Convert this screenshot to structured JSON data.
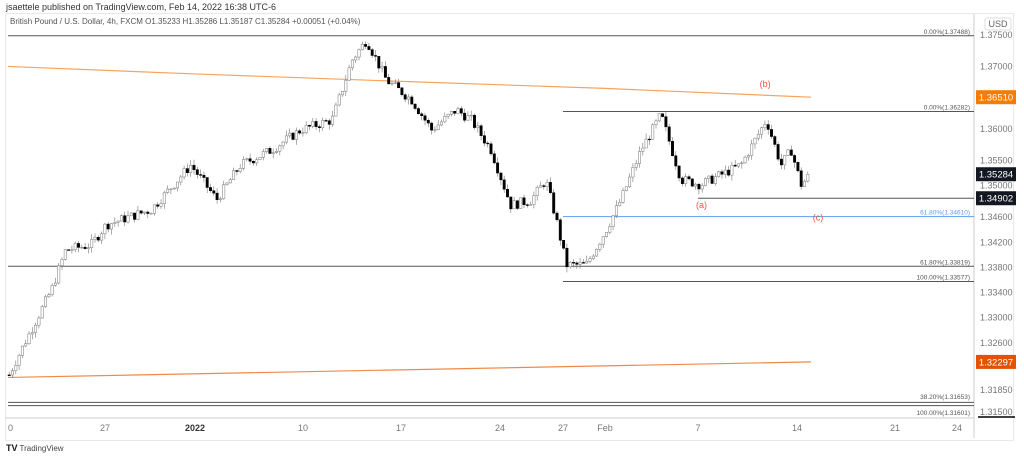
{
  "header": {
    "published": "jsaettele published on TradingView.com, Feb 14, 2022 16:38 UTC-6",
    "symbol_line": "British Pound / U.S. Dollar, 4h, FXCM  O1.35233  H1.35286  L1.35187  C1.35284  +0.00051 (+0.04%)"
  },
  "footer": {
    "brand": "TradingView",
    "logo": "tv-logo"
  },
  "chart_data": {
    "type": "candlestick",
    "currency": "USD",
    "ylim": [
      1.315,
      1.375
    ],
    "x_ticks": [
      {
        "label": "0",
        "date": "2021-12-20"
      },
      {
        "label": "27",
        "date": "2021-12-27"
      },
      {
        "label": "2022",
        "date": "2022-01-03",
        "bold": true
      },
      {
        "label": "10",
        "date": "2022-01-10"
      },
      {
        "label": "17",
        "date": "2022-01-17"
      },
      {
        "label": "24",
        "date": "2022-01-24"
      },
      {
        "label": "27",
        "date": "2022-01-27"
      },
      {
        "label": "Feb",
        "date": "2022-02-01"
      },
      {
        "label": "7",
        "date": "2022-02-07"
      },
      {
        "label": "14",
        "date": "2022-02-14"
      },
      {
        "label": "21",
        "date": "2022-02-21"
      },
      {
        "label": "24",
        "date": "2022-02-24"
      }
    ],
    "y_ticks": [
      "1.37500",
      "1.37000",
      "1.36000",
      "1.35500",
      "1.35000",
      "1.34600",
      "1.34200",
      "1.33800",
      "1.33400",
      "1.33000",
      "1.32600",
      "1.31850",
      "1.31500"
    ],
    "price_path": [
      [
        "2021-12-20T00",
        1.3209
      ],
      [
        "2021-12-20T21",
        1.3249
      ],
      [
        "2021-12-23T01",
        1.3344
      ],
      [
        "2021-12-24T02",
        1.3408
      ],
      [
        "2021-12-25T22",
        1.3416
      ],
      [
        "2021-12-27T00",
        1.3448
      ],
      [
        "2021-12-30T12",
        1.3472
      ],
      [
        "2022-01-02T14",
        1.3543
      ],
      [
        "2022-01-04T08",
        1.3488
      ],
      [
        "2022-01-05T21",
        1.3543
      ],
      [
        "2022-01-07T21",
        1.3567
      ],
      [
        "2022-01-09T19",
        1.3599
      ],
      [
        "2022-01-12T00",
        1.3615
      ],
      [
        "2022-01-13T10",
        1.371
      ],
      [
        "2022-01-14T11",
        1.3742
      ],
      [
        "2022-01-15T21",
        1.3678
      ],
      [
        "2022-01-17T16",
        1.3647
      ],
      [
        "2022-01-19T02",
        1.3599
      ],
      [
        "2022-01-20T20",
        1.3631
      ],
      [
        "2022-01-21T21",
        1.3615
      ],
      [
        "2022-01-23T07",
        1.3567
      ],
      [
        "2022-01-24T11",
        1.3479
      ],
      [
        "2022-01-25T10",
        1.3487
      ],
      [
        "2022-01-26T03",
        1.3519
      ],
      [
        "2022-01-26T15",
        1.3456
      ],
      [
        "2022-01-27T06",
        1.3384
      ],
      [
        "2022-01-29T15",
        1.3384
      ],
      [
        "2022-02-01T00",
        1.344
      ],
      [
        "2022-02-01T23",
        1.3488
      ],
      [
        "2022-02-03T06",
        1.3567
      ],
      [
        "2022-02-04T13",
        1.3623
      ],
      [
        "2022-02-05T20",
        1.352
      ],
      [
        "2022-02-07T03",
        1.3512
      ],
      [
        "2022-02-09T23",
        1.3543
      ],
      [
        "2022-02-11T18",
        1.3615
      ],
      [
        "2022-02-12T19",
        1.3543
      ],
      [
        "2022-02-13T12",
        1.3567
      ],
      [
        "2022-02-14T05",
        1.3512
      ],
      [
        "2022-02-14T22",
        1.35284
      ]
    ],
    "moving_averages": [
      {
        "color": "#f7a35c",
        "last": "1.36510",
        "points": [
          [
            "2021-12-20",
            1.37
          ],
          [
            "2022-01-03",
            1.3688
          ],
          [
            "2022-01-16",
            1.3677
          ],
          [
            "2022-02-01",
            1.3665
          ],
          [
            "2022-02-15",
            1.3651
          ]
        ]
      },
      {
        "color": "#f08a4b",
        "last": "1.32297",
        "points": [
          [
            "2021-12-20",
            1.3205
          ],
          [
            "2022-02-15",
            1.32297
          ]
        ]
      }
    ],
    "levels": [
      {
        "label": "0.00%(1.37488)",
        "price": 1.37488,
        "from": "2021-12-20",
        "color": "#555"
      },
      {
        "label": "0.00%(1.36282)",
        "price": 1.36282,
        "from": "2022-01-27",
        "color": "#555"
      },
      {
        "label": "",
        "price": 1.34902,
        "from": "2022-02-07",
        "color": "#555"
      },
      {
        "label": "61.80%(1.34610)",
        "price": 1.3461,
        "from": "2022-01-27",
        "color": "#5b9cf0"
      },
      {
        "label": "61.80%(1.33819)",
        "price": 1.33819,
        "from": "2021-12-20",
        "color": "#555"
      },
      {
        "label": "100.00%(1.33577)",
        "price": 1.33577,
        "from": "2022-01-27",
        "color": "#555"
      },
      {
        "label": "38.20%(1.31653)",
        "price": 1.31653,
        "from": "2021-12-20",
        "color": "#555"
      },
      {
        "label": "100.00%(1.31601)",
        "price": 1.31601,
        "from": "2021-12-20",
        "color": "#555"
      }
    ],
    "price_badges": [
      {
        "value": "1.36510",
        "price": 1.3651,
        "bg": "#f57c00"
      },
      {
        "value": "1.35284",
        "price": 1.35284,
        "bg": "#131722"
      },
      {
        "value": "1.34902",
        "price": 1.34902,
        "bg": "#131722"
      },
      {
        "value": "1.32297",
        "price": 1.32297,
        "bg": "#e65100"
      }
    ],
    "annotations": [
      {
        "text": "(a)",
        "date": "2022-02-07T06",
        "price": 1.3475,
        "color": "#f05050"
      },
      {
        "text": "(b)",
        "date": "2022-02-11T18",
        "price": 1.3667,
        "color": "#f05050"
      },
      {
        "text": "(c)",
        "date": "2022-02-15T12",
        "price": 1.3455,
        "color": "#f05050"
      }
    ]
  }
}
